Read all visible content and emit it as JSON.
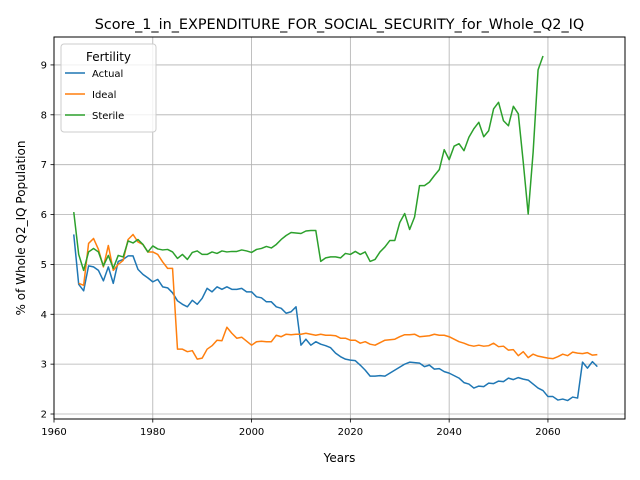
{
  "chart_data": {
    "type": "line",
    "title": "Score_1_in_EXPENDITURE_FOR_SOCIAL_SECURITY_for_Whole_Q2_IQ",
    "xlabel": "Years",
    "ylabel": "% of Whole Q2_IQ Population",
    "xlim": [
      1960,
      2075.6
    ],
    "ylim": [
      1.9,
      9.56
    ],
    "xticks": [
      1960,
      1980,
      2000,
      2020,
      2040,
      2060
    ],
    "yticks": [
      2,
      3,
      4,
      5,
      6,
      7,
      8,
      9
    ],
    "grid": true,
    "legend": {
      "title": "Fertility",
      "position": "top-left"
    },
    "series": [
      {
        "name": "Actual",
        "color": "#1f77b4",
        "points": [
          [
            1964,
            5.6
          ],
          [
            1965,
            4.6
          ],
          [
            1966,
            4.47
          ],
          [
            1967,
            4.97
          ],
          [
            1968,
            4.95
          ],
          [
            1969,
            4.88
          ],
          [
            1970,
            4.67
          ],
          [
            1971,
            4.95
          ],
          [
            1972,
            4.62
          ],
          [
            1973,
            5.06
          ],
          [
            1974,
            5.1
          ],
          [
            1975,
            5.17
          ],
          [
            1976,
            5.17
          ],
          [
            1977,
            4.9
          ],
          [
            1978,
            4.8
          ],
          [
            1979,
            4.73
          ],
          [
            1980,
            4.65
          ],
          [
            1981,
            4.7
          ],
          [
            1982,
            4.55
          ],
          [
            1983,
            4.53
          ],
          [
            1984,
            4.43
          ],
          [
            1985,
            4.27
          ],
          [
            1986,
            4.2
          ],
          [
            1987,
            4.15
          ],
          [
            1988,
            4.28
          ],
          [
            1989,
            4.2
          ],
          [
            1990,
            4.32
          ],
          [
            1991,
            4.52
          ],
          [
            1992,
            4.45
          ],
          [
            1993,
            4.55
          ],
          [
            1994,
            4.5
          ],
          [
            1995,
            4.55
          ],
          [
            1996,
            4.5
          ],
          [
            1997,
            4.5
          ],
          [
            1998,
            4.52
          ],
          [
            1999,
            4.45
          ],
          [
            2000,
            4.45
          ],
          [
            2001,
            4.35
          ],
          [
            2002,
            4.33
          ],
          [
            2003,
            4.25
          ],
          [
            2004,
            4.25
          ],
          [
            2005,
            4.15
          ],
          [
            2006,
            4.12
          ],
          [
            2007,
            4.02
          ],
          [
            2008,
            4.05
          ],
          [
            2009,
            4.15
          ],
          [
            2010,
            3.38
          ],
          [
            2011,
            3.5
          ],
          [
            2012,
            3.38
          ],
          [
            2013,
            3.45
          ],
          [
            2014,
            3.4
          ],
          [
            2015,
            3.37
          ],
          [
            2016,
            3.33
          ],
          [
            2017,
            3.22
          ],
          [
            2018,
            3.15
          ],
          [
            2019,
            3.1
          ],
          [
            2020,
            3.08
          ],
          [
            2021,
            3.07
          ],
          [
            2022,
            2.98
          ],
          [
            2023,
            2.88
          ],
          [
            2024,
            2.76
          ],
          [
            2025,
            2.76
          ],
          [
            2026,
            2.77
          ],
          [
            2027,
            2.76
          ],
          [
            2028,
            2.82
          ],
          [
            2029,
            2.88
          ],
          [
            2030,
            2.94
          ],
          [
            2031,
            3.0
          ],
          [
            2032,
            3.04
          ],
          [
            2033,
            3.03
          ],
          [
            2034,
            3.02
          ],
          [
            2035,
            2.95
          ],
          [
            2036,
            2.98
          ],
          [
            2037,
            2.9
          ],
          [
            2038,
            2.91
          ],
          [
            2039,
            2.85
          ],
          [
            2040,
            2.82
          ],
          [
            2041,
            2.77
          ],
          [
            2042,
            2.72
          ],
          [
            2043,
            2.63
          ],
          [
            2044,
            2.6
          ],
          [
            2045,
            2.52
          ],
          [
            2046,
            2.56
          ],
          [
            2047,
            2.55
          ],
          [
            2048,
            2.62
          ],
          [
            2049,
            2.61
          ],
          [
            2050,
            2.66
          ],
          [
            2051,
            2.65
          ],
          [
            2052,
            2.72
          ],
          [
            2053,
            2.69
          ],
          [
            2054,
            2.73
          ],
          [
            2055,
            2.7
          ],
          [
            2056,
            2.68
          ],
          [
            2057,
            2.6
          ],
          [
            2058,
            2.52
          ],
          [
            2059,
            2.47
          ],
          [
            2060,
            2.35
          ],
          [
            2061,
            2.35
          ],
          [
            2062,
            2.28
          ],
          [
            2063,
            2.3
          ],
          [
            2064,
            2.27
          ],
          [
            2065,
            2.34
          ],
          [
            2066,
            2.32
          ],
          [
            2067,
            3.04
          ],
          [
            2068,
            2.92
          ],
          [
            2069,
            3.05
          ],
          [
            2070,
            2.95
          ]
        ]
      },
      {
        "name": "Ideal",
        "color": "#ff7f0e",
        "points": [
          [
            1965,
            4.62
          ],
          [
            1966,
            4.58
          ],
          [
            1967,
            5.42
          ],
          [
            1968,
            5.52
          ],
          [
            1969,
            5.3
          ],
          [
            1970,
            4.95
          ],
          [
            1971,
            5.38
          ],
          [
            1972,
            4.88
          ],
          [
            1973,
            5.0
          ],
          [
            1974,
            5.08
          ],
          [
            1975,
            5.5
          ],
          [
            1976,
            5.6
          ],
          [
            1977,
            5.45
          ],
          [
            1978,
            5.4
          ],
          [
            1979,
            5.25
          ],
          [
            1980,
            5.25
          ],
          [
            1981,
            5.2
          ],
          [
            1982,
            5.05
          ],
          [
            1983,
            4.92
          ],
          [
            1984,
            4.92
          ],
          [
            1985,
            3.3
          ],
          [
            1986,
            3.3
          ],
          [
            1987,
            3.25
          ],
          [
            1988,
            3.27
          ],
          [
            1989,
            3.1
          ],
          [
            1990,
            3.12
          ],
          [
            1991,
            3.3
          ],
          [
            1992,
            3.37
          ],
          [
            1993,
            3.48
          ],
          [
            1994,
            3.47
          ],
          [
            1995,
            3.74
          ],
          [
            1996,
            3.62
          ],
          [
            1997,
            3.52
          ],
          [
            1998,
            3.54
          ],
          [
            1999,
            3.46
          ],
          [
            2000,
            3.38
          ],
          [
            2001,
            3.45
          ],
          [
            2002,
            3.46
          ],
          [
            2003,
            3.45
          ],
          [
            2004,
            3.45
          ],
          [
            2005,
            3.58
          ],
          [
            2006,
            3.55
          ],
          [
            2007,
            3.6
          ],
          [
            2008,
            3.59
          ],
          [
            2009,
            3.6
          ],
          [
            2010,
            3.6
          ],
          [
            2011,
            3.62
          ],
          [
            2012,
            3.6
          ],
          [
            2013,
            3.58
          ],
          [
            2014,
            3.6
          ],
          [
            2015,
            3.58
          ],
          [
            2016,
            3.58
          ],
          [
            2017,
            3.57
          ],
          [
            2018,
            3.52
          ],
          [
            2019,
            3.52
          ],
          [
            2020,
            3.48
          ],
          [
            2021,
            3.48
          ],
          [
            2022,
            3.42
          ],
          [
            2023,
            3.45
          ],
          [
            2024,
            3.4
          ],
          [
            2025,
            3.38
          ],
          [
            2026,
            3.43
          ],
          [
            2027,
            3.48
          ],
          [
            2028,
            3.49
          ],
          [
            2029,
            3.5
          ],
          [
            2030,
            3.55
          ],
          [
            2031,
            3.59
          ],
          [
            2032,
            3.59
          ],
          [
            2033,
            3.6
          ],
          [
            2034,
            3.55
          ],
          [
            2035,
            3.56
          ],
          [
            2036,
            3.57
          ],
          [
            2037,
            3.6
          ],
          [
            2038,
            3.58
          ],
          [
            2039,
            3.58
          ],
          [
            2040,
            3.55
          ],
          [
            2041,
            3.5
          ],
          [
            2042,
            3.45
          ],
          [
            2043,
            3.42
          ],
          [
            2044,
            3.38
          ],
          [
            2045,
            3.36
          ],
          [
            2046,
            3.38
          ],
          [
            2047,
            3.36
          ],
          [
            2048,
            3.37
          ],
          [
            2049,
            3.42
          ],
          [
            2050,
            3.35
          ],
          [
            2051,
            3.36
          ],
          [
            2052,
            3.28
          ],
          [
            2053,
            3.29
          ],
          [
            2054,
            3.17
          ],
          [
            2055,
            3.25
          ],
          [
            2056,
            3.13
          ],
          [
            2057,
            3.2
          ],
          [
            2058,
            3.16
          ],
          [
            2059,
            3.14
          ],
          [
            2060,
            3.12
          ],
          [
            2061,
            3.11
          ],
          [
            2062,
            3.15
          ],
          [
            2063,
            3.2
          ],
          [
            2064,
            3.17
          ],
          [
            2065,
            3.24
          ],
          [
            2066,
            3.22
          ],
          [
            2067,
            3.21
          ],
          [
            2068,
            3.23
          ],
          [
            2069,
            3.18
          ],
          [
            2070,
            3.19
          ]
        ]
      },
      {
        "name": "Sterile",
        "color": "#2ca02c",
        "points": [
          [
            1964,
            6.05
          ],
          [
            1965,
            5.2
          ],
          [
            1966,
            4.88
          ],
          [
            1967,
            5.25
          ],
          [
            1968,
            5.32
          ],
          [
            1969,
            5.25
          ],
          [
            1970,
            4.97
          ],
          [
            1971,
            5.18
          ],
          [
            1972,
            4.92
          ],
          [
            1973,
            5.18
          ],
          [
            1974,
            5.15
          ],
          [
            1975,
            5.47
          ],
          [
            1976,
            5.43
          ],
          [
            1977,
            5.5
          ],
          [
            1978,
            5.4
          ],
          [
            1979,
            5.25
          ],
          [
            1980,
            5.37
          ],
          [
            1981,
            5.31
          ],
          [
            1982,
            5.29
          ],
          [
            1983,
            5.3
          ],
          [
            1984,
            5.25
          ],
          [
            1985,
            5.12
          ],
          [
            1986,
            5.2
          ],
          [
            1987,
            5.1
          ],
          [
            1988,
            5.24
          ],
          [
            1989,
            5.27
          ],
          [
            1990,
            5.2
          ],
          [
            1991,
            5.2
          ],
          [
            1992,
            5.25
          ],
          [
            1993,
            5.22
          ],
          [
            1994,
            5.27
          ],
          [
            1995,
            5.25
          ],
          [
            1996,
            5.26
          ],
          [
            1997,
            5.26
          ],
          [
            1998,
            5.29
          ],
          [
            1999,
            5.27
          ],
          [
            2000,
            5.24
          ],
          [
            2001,
            5.3
          ],
          [
            2002,
            5.32
          ],
          [
            2003,
            5.36
          ],
          [
            2004,
            5.33
          ],
          [
            2005,
            5.4
          ],
          [
            2006,
            5.5
          ],
          [
            2007,
            5.58
          ],
          [
            2008,
            5.64
          ],
          [
            2009,
            5.63
          ],
          [
            2010,
            5.62
          ],
          [
            2011,
            5.67
          ],
          [
            2012,
            5.68
          ],
          [
            2013,
            5.68
          ],
          [
            2014,
            5.06
          ],
          [
            2015,
            5.13
          ],
          [
            2016,
            5.15
          ],
          [
            2017,
            5.15
          ],
          [
            2018,
            5.13
          ],
          [
            2019,
            5.22
          ],
          [
            2020,
            5.2
          ],
          [
            2021,
            5.26
          ],
          [
            2022,
            5.2
          ],
          [
            2023,
            5.25
          ],
          [
            2024,
            5.06
          ],
          [
            2025,
            5.1
          ],
          [
            2026,
            5.25
          ],
          [
            2027,
            5.35
          ],
          [
            2028,
            5.48
          ],
          [
            2029,
            5.48
          ],
          [
            2030,
            5.84
          ],
          [
            2031,
            6.02
          ],
          [
            2032,
            5.7
          ],
          [
            2033,
            5.95
          ],
          [
            2034,
            6.58
          ],
          [
            2035,
            6.58
          ],
          [
            2036,
            6.65
          ],
          [
            2037,
            6.78
          ],
          [
            2038,
            6.9
          ],
          [
            2039,
            7.3
          ],
          [
            2040,
            7.1
          ],
          [
            2041,
            7.37
          ],
          [
            2042,
            7.42
          ],
          [
            2043,
            7.28
          ],
          [
            2044,
            7.55
          ],
          [
            2045,
            7.72
          ],
          [
            2046,
            7.85
          ],
          [
            2047,
            7.56
          ],
          [
            2048,
            7.68
          ],
          [
            2049,
            8.12
          ],
          [
            2050,
            8.25
          ],
          [
            2051,
            7.88
          ],
          [
            2052,
            7.78
          ],
          [
            2053,
            8.17
          ],
          [
            2054,
            8.02
          ],
          [
            2055,
            7.05
          ],
          [
            2056,
            6.01
          ],
          [
            2057,
            7.25
          ],
          [
            2058,
            8.9
          ],
          [
            2059,
            9.18
          ]
        ]
      }
    ]
  }
}
